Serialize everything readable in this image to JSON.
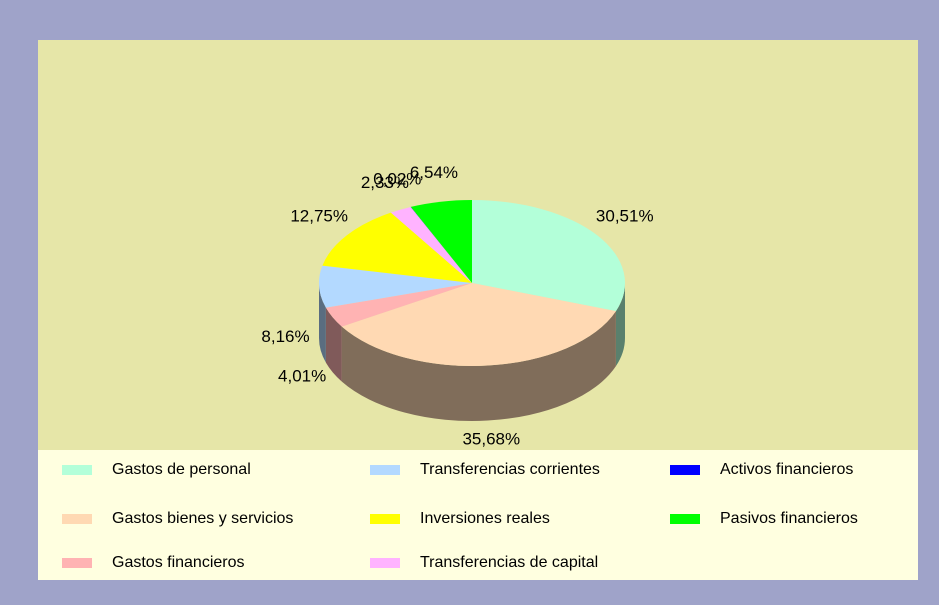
{
  "chart_data": {
    "type": "pie3d",
    "categories": [
      "Gastos de personal",
      "Gastos bienes y servicios",
      "Gastos financieros",
      "Transferencias corrientes",
      "Inversiones reales",
      "Transferencias de capital",
      "Activos financieros",
      "Pasivos financieros"
    ],
    "values": [
      30.51,
      35.68,
      4.01,
      8.16,
      12.75,
      2.33,
      0.02,
      6.54
    ],
    "value_labels": [
      "30,51%",
      "35,68%",
      "4,01%",
      "8,16%",
      "12,75%",
      "2,33%",
      "0,02%",
      "6,54%"
    ],
    "colors": [
      "#b3ffd9",
      "#ffd9b3",
      "#ffb3b3",
      "#b3d9ff",
      "#ffff00",
      "#ffb3ff",
      "#0000ff",
      "#00ff00"
    ],
    "legend": "bottom"
  }
}
